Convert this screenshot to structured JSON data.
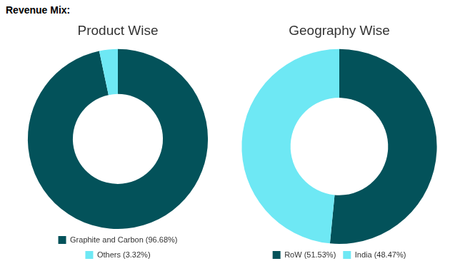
{
  "heading": "Revenue Mix:",
  "chart_data": [
    {
      "type": "doughnut",
      "title": "Product Wise",
      "categories": [
        "Graphite and Carbon (96.68%)",
        "Others (3.32%)"
      ],
      "values": [
        96.68,
        3.32
      ],
      "colors": [
        "#03525a",
        "#6ee8f4"
      ],
      "legend": "bottom"
    },
    {
      "type": "doughnut",
      "title": "Geography Wise",
      "categories": [
        "RoW (51.53%)",
        "India (48.47%)"
      ],
      "values": [
        51.53,
        48.47
      ],
      "colors": [
        "#03525a",
        "#6ee8f4"
      ],
      "legend": "bottom"
    }
  ]
}
